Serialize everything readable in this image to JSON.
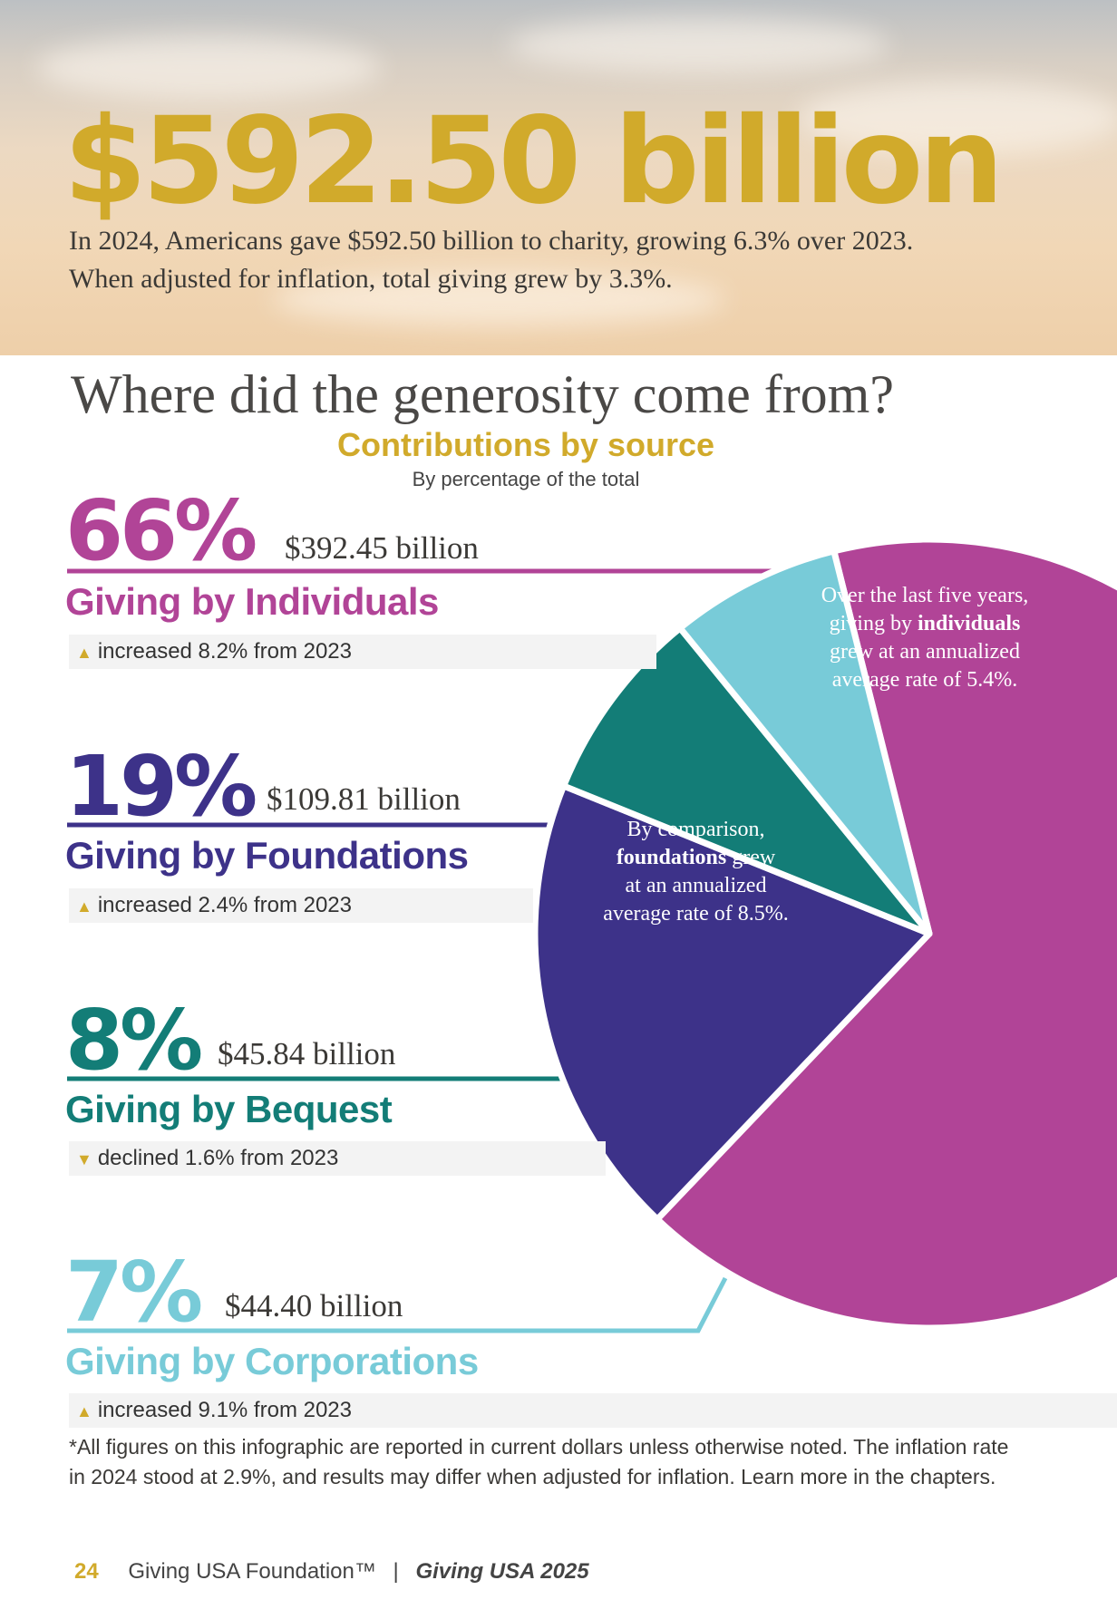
{
  "header": {
    "amount": "$592.50 billion",
    "line1": "In 2024, Americans gave $592.50 billion to charity, growing 6.3% over 2023.",
    "line2": "When adjusted for inflation, total giving grew by 3.3%."
  },
  "section": {
    "title": "Where did the generosity come from?",
    "chart_title": "Contributions by source",
    "chart_subtitle": "By percentage of the total"
  },
  "chart_data": {
    "type": "pie",
    "title": "Contributions by source",
    "subtitle": "By percentage of the total",
    "slices": [
      {
        "label": "Giving by Individuals",
        "percent": 66,
        "amount": "$392.45 billion",
        "value_billion": 392.45,
        "change": "increased 8.2% from 2023",
        "direction": "up",
        "color": "#b14497"
      },
      {
        "label": "Giving by Foundations",
        "percent": 19,
        "amount": "$109.81 billion",
        "value_billion": 109.81,
        "change": "increased 2.4% from 2023",
        "direction": "up",
        "color": "#3d3289"
      },
      {
        "label": "Giving by Bequest",
        "percent": 8,
        "amount": "$45.84 billion",
        "value_billion": 45.84,
        "change": "declined 1.6% from 2023",
        "direction": "down",
        "color": "#137d77"
      },
      {
        "label": "Giving by Corporations",
        "percent": 7,
        "amount": "$44.40 billion",
        "value_billion": 44.4,
        "change": "increased 9.1% from 2023",
        "direction": "up",
        "color": "#78cbd8"
      }
    ],
    "annotations": {
      "individuals": {
        "l1": "Over the last five years,",
        "l2a": "giving by ",
        "l2b": "individuals",
        "l3": "grew at an annualized",
        "l4": "average rate of 5.4%."
      },
      "foundations": {
        "l1": "By comparison,",
        "l2a": "foundations",
        "l2b": " grew",
        "l3": "at an annualized",
        "l4": "average rate of 8.5%."
      }
    }
  },
  "footnote": "*All figures on this infographic are reported in current dollars unless otherwise noted. The inflation rate in 2024 stood at 2.9%, and results may differ when adjusted for inflation. Learn more in the chapters.",
  "footer": {
    "page": "24",
    "org": "Giving USA Foundation™",
    "separator": "|",
    "publication": "Giving USA 2025"
  },
  "colors": {
    "gold": "#d1aa2b",
    "individuals": "#b14497",
    "foundations": "#3d3289",
    "bequest": "#137d77",
    "corporations": "#78cbd8"
  },
  "icons": {
    "up": "up-arrow-icon",
    "down": "down-arrow-icon"
  }
}
